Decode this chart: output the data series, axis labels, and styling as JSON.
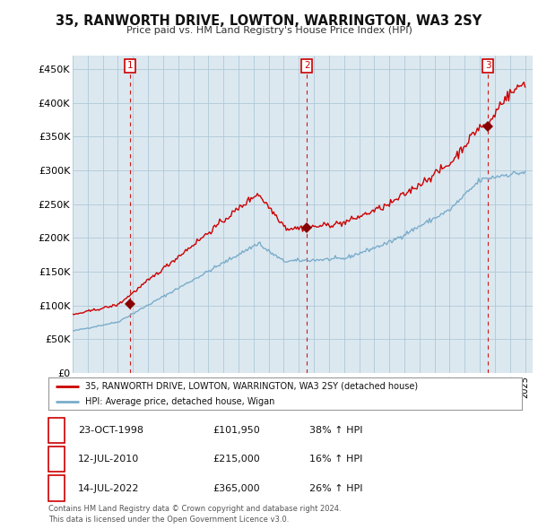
{
  "title": "35, RANWORTH DRIVE, LOWTON, WARRINGTON, WA3 2SY",
  "subtitle": "Price paid vs. HM Land Registry's House Price Index (HPI)",
  "ylabel_ticks": [
    "£0",
    "£50K",
    "£100K",
    "£150K",
    "£200K",
    "£250K",
    "£300K",
    "£350K",
    "£400K",
    "£450K"
  ],
  "ytick_values": [
    0,
    50000,
    100000,
    150000,
    200000,
    250000,
    300000,
    350000,
    400000,
    450000
  ],
  "ylim": [
    0,
    470000
  ],
  "xlim_start": 1995.0,
  "xlim_end": 2025.5,
  "red_line_color": "#cc0000",
  "blue_line_color": "#7aadcb",
  "plot_bg_color": "#dce8f0",
  "sale_marker_color": "#880000",
  "sale_dates": [
    1998.81,
    2010.53,
    2022.53
  ],
  "sale_prices": [
    101950,
    215000,
    365000
  ],
  "sale_labels": [
    "1",
    "2",
    "3"
  ],
  "vline_color": "#cc0000",
  "legend_label_red": "35, RANWORTH DRIVE, LOWTON, WARRINGTON, WA3 2SY (detached house)",
  "legend_label_blue": "HPI: Average price, detached house, Wigan",
  "table_rows": [
    [
      "1",
      "23-OCT-1998",
      "£101,950",
      "38% ↑ HPI"
    ],
    [
      "2",
      "12-JUL-2010",
      "£215,000",
      "16% ↑ HPI"
    ],
    [
      "3",
      "14-JUL-2022",
      "£365,000",
      "26% ↑ HPI"
    ]
  ],
  "footnote": "Contains HM Land Registry data © Crown copyright and database right 2024.\nThis data is licensed under the Open Government Licence v3.0.",
  "background_color": "#ffffff",
  "grid_color": "#aec8d8"
}
